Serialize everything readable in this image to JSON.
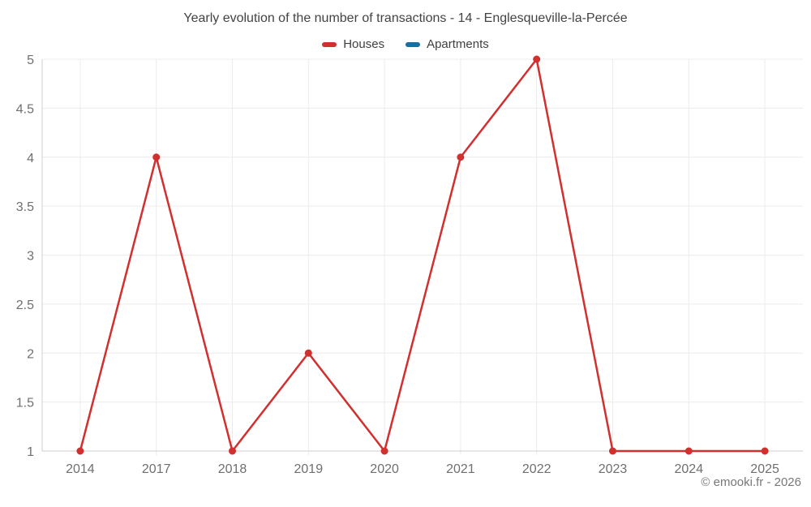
{
  "title": "Yearly evolution of the number of transactions - 14 - Englesqueville-la-Percée",
  "footer": {
    "text": "© emooki.fr - 2026"
  },
  "colors": {
    "houses": "#d22f2f",
    "apartments": "#186fa0",
    "grid": "#ececec",
    "axis": "#cfcfcf",
    "tick_label": "#6f6f6f",
    "title": "#434343",
    "background": "#ffffff"
  },
  "chart_data": {
    "type": "line",
    "title": "Yearly evolution of the number of transactions - 14 - Englesqueville-la-Percée",
    "categories": [
      "2014",
      "2017",
      "2018",
      "2019",
      "2020",
      "2021",
      "2022",
      "2023",
      "2024",
      "2025"
    ],
    "series": [
      {
        "name": "Houses",
        "color": "#d22f2f",
        "values": [
          1,
          4,
          1,
          2,
          1,
          4,
          5,
          1,
          1,
          1
        ]
      },
      {
        "name": "Apartments",
        "color": "#186fa0",
        "values": []
      }
    ],
    "xlabel": "",
    "ylabel": "",
    "ylim": [
      1,
      5
    ],
    "yticks": [
      1,
      1.5,
      2,
      2.5,
      3,
      3.5,
      4,
      4.5,
      5
    ],
    "grid": true,
    "legend_position": "top"
  }
}
